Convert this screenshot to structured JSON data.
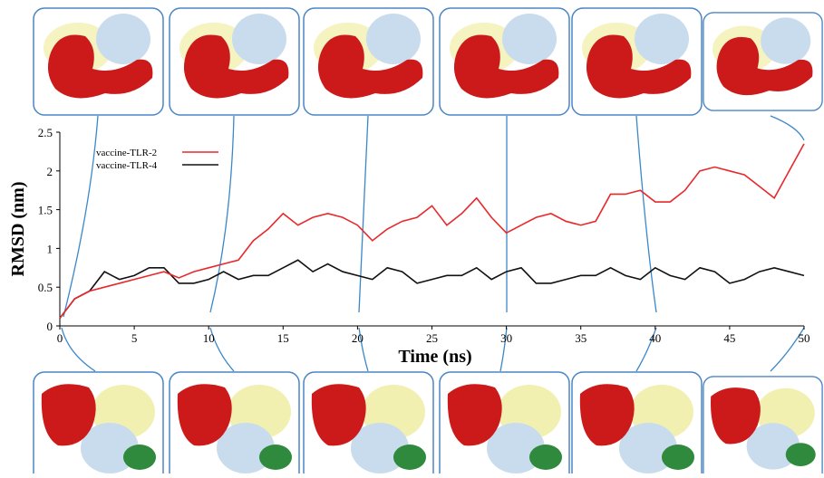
{
  "chart_data": {
    "type": "line",
    "x_label": "Time (ns)",
    "y_label": "RMSD (nm)",
    "x": [
      0,
      1,
      2,
      3,
      4,
      5,
      6,
      7,
      8,
      9,
      10,
      11,
      12,
      13,
      14,
      15,
      16,
      17,
      18,
      19,
      20,
      21,
      22,
      23,
      24,
      25,
      26,
      27,
      28,
      29,
      30,
      31,
      32,
      33,
      34,
      35,
      36,
      37,
      38,
      39,
      40,
      41,
      42,
      43,
      44,
      45,
      46,
      47,
      48,
      49,
      50
    ],
    "series": [
      {
        "name": "vaccine-TLR-2",
        "color": "#e8282b",
        "values": [
          0.1,
          0.35,
          0.45,
          0.5,
          0.55,
          0.6,
          0.65,
          0.7,
          0.62,
          0.7,
          0.75,
          0.8,
          0.85,
          1.1,
          1.25,
          1.45,
          1.3,
          1.4,
          1.45,
          1.4,
          1.3,
          1.1,
          1.25,
          1.35,
          1.4,
          1.55,
          1.3,
          1.45,
          1.65,
          1.4,
          1.2,
          1.3,
          1.4,
          1.45,
          1.35,
          1.3,
          1.35,
          1.7,
          1.7,
          1.75,
          1.6,
          1.6,
          1.75,
          2.0,
          2.05,
          2.0,
          1.95,
          1.8,
          1.65,
          2.0,
          2.35
        ]
      },
      {
        "name": "vaccine-TLR-4",
        "color": "#111111",
        "values": [
          0.1,
          0.35,
          0.45,
          0.7,
          0.6,
          0.65,
          0.75,
          0.75,
          0.55,
          0.55,
          0.6,
          0.7,
          0.6,
          0.65,
          0.65,
          0.75,
          0.85,
          0.7,
          0.8,
          0.7,
          0.65,
          0.6,
          0.75,
          0.7,
          0.55,
          0.6,
          0.65,
          0.65,
          0.75,
          0.6,
          0.7,
          0.75,
          0.55,
          0.55,
          0.6,
          0.65,
          0.65,
          0.75,
          0.65,
          0.6,
          0.75,
          0.65,
          0.6,
          0.75,
          0.7,
          0.55,
          0.6,
          0.7,
          0.75,
          0.7,
          0.65
        ]
      }
    ],
    "xlim": [
      0,
      50
    ],
    "xticks": [
      0,
      5,
      10,
      15,
      20,
      25,
      30,
      35,
      40,
      45,
      50
    ],
    "ylim": [
      0,
      2.5
    ],
    "yticks": [
      0,
      0.5,
      1,
      1.5,
      2,
      2.5
    ],
    "grid": false,
    "legend": "upper left"
  }
}
